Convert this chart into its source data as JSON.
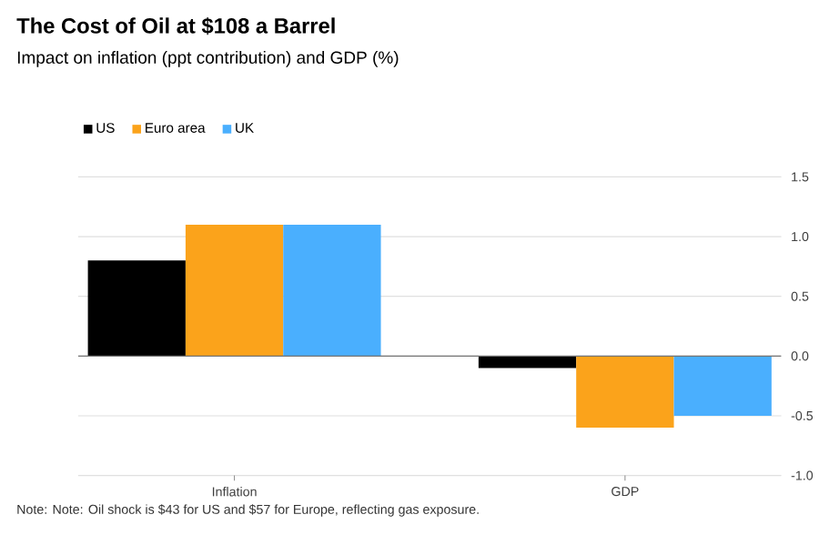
{
  "chart_data": {
    "type": "bar",
    "title": "The Cost of Oil at $108 a Barrel",
    "subtitle": "Impact on inflation (ppt contribution) and GDP (%)",
    "categories": [
      "Inflation",
      "GDP"
    ],
    "series": [
      {
        "name": "US",
        "color": "#000000",
        "values": [
          0.8,
          -0.1
        ]
      },
      {
        "name": "Euro area",
        "color": "#fba31b",
        "values": [
          1.1,
          -0.6
        ]
      },
      {
        "name": "UK",
        "color": "#4aaffe",
        "values": [
          1.1,
          -0.5
        ]
      }
    ],
    "ylim": [
      -1.0,
      1.5
    ],
    "yticks": [
      {
        "value": -1.0,
        "label": "-1.0"
      },
      {
        "value": -0.5,
        "label": "-0.5"
      },
      {
        "value": 0.0,
        "label": "0.0"
      },
      {
        "value": 0.5,
        "label": "0.5"
      },
      {
        "value": 1.0,
        "label": "1.0"
      },
      {
        "value": 1.5,
        "label": "1.5"
      }
    ],
    "grid": "y",
    "legend": "top left",
    "annotations": [
      "Note: Note: Oil shock is $43 for US and $57 for Europe, reflecting gas exposure."
    ]
  }
}
